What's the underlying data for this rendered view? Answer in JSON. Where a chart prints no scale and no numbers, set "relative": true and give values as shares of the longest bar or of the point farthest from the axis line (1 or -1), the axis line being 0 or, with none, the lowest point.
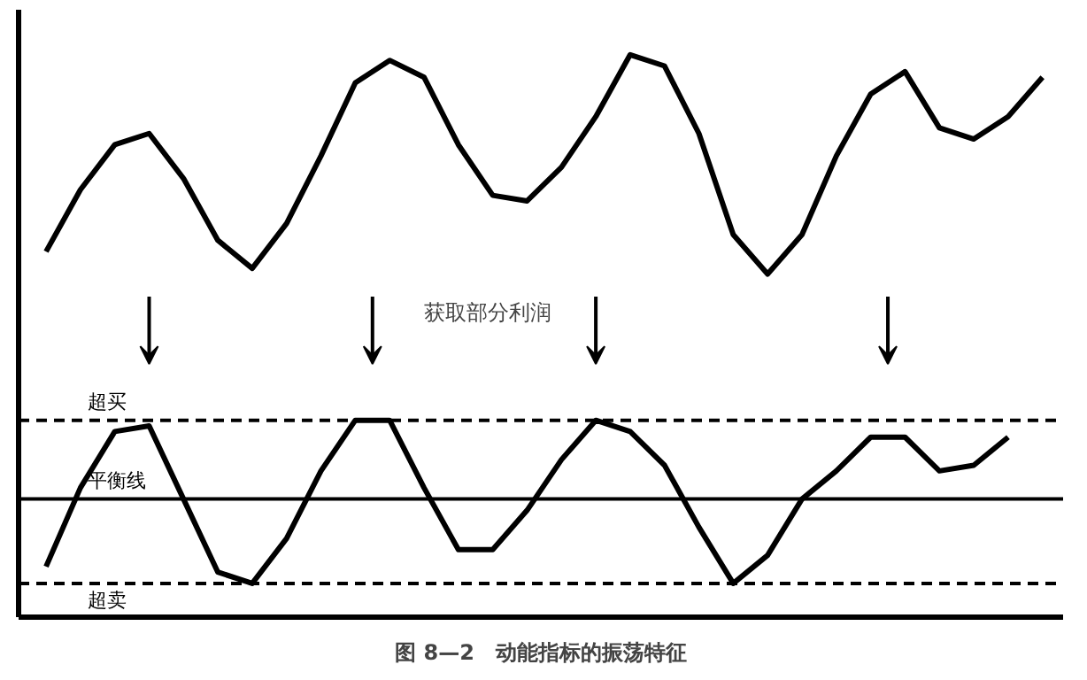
{
  "chart_data": {
    "type": "line",
    "title": "图 8—2　动能指标的振荡特征",
    "relative": true,
    "grid": false,
    "marker": "none",
    "line_style": "solid",
    "categories": [
      null,
      null,
      null,
      null,
      null,
      null,
      null,
      null,
      null,
      null,
      null,
      null,
      null,
      null,
      null,
      null,
      null,
      null,
      null,
      null,
      null,
      null,
      null,
      null,
      null,
      null,
      null,
      null,
      null,
      null
    ],
    "series": [
      {
        "color": "#000000",
        "values": [
          0.65,
          0.76,
          0.84,
          0.86,
          0.78,
          0.67,
          0.62,
          0.7,
          0.82,
          0.95,
          0.99,
          0.96,
          0.84,
          0.75,
          0.74,
          0.8,
          0.89,
          1.0,
          0.98,
          0.86,
          0.68,
          0.61,
          0.68,
          0.82,
          0.93,
          0.97,
          0.87,
          0.85,
          0.89,
          0.96
        ]
      },
      {
        "color": "#000000",
        "values": [
          0.09,
          0.23,
          0.33,
          0.34,
          0.21,
          0.08,
          0.06,
          0.14,
          0.26,
          0.35,
          0.35,
          0.23,
          0.12,
          0.12,
          0.19,
          0.28,
          0.35,
          0.33,
          0.27,
          0.16,
          0.06,
          0.11,
          0.21,
          0.26,
          0.32,
          0.32,
          0.26,
          0.27,
          0.32,
          null
        ]
      }
    ],
    "ref_lines": [
      {
        "axis": "y",
        "value": 0.35,
        "label": "超买",
        "line_style": "dashed",
        "color": "#000000"
      },
      {
        "axis": "y",
        "value": 0.21,
        "label": "平衡线",
        "line_style": "solid",
        "color": "#000000"
      },
      {
        "axis": "y",
        "value": 0.06,
        "label": "超卖",
        "line_style": "dashed",
        "color": "#000000"
      }
    ],
    "annotations": [
      "获取部分利润"
    ]
  }
}
